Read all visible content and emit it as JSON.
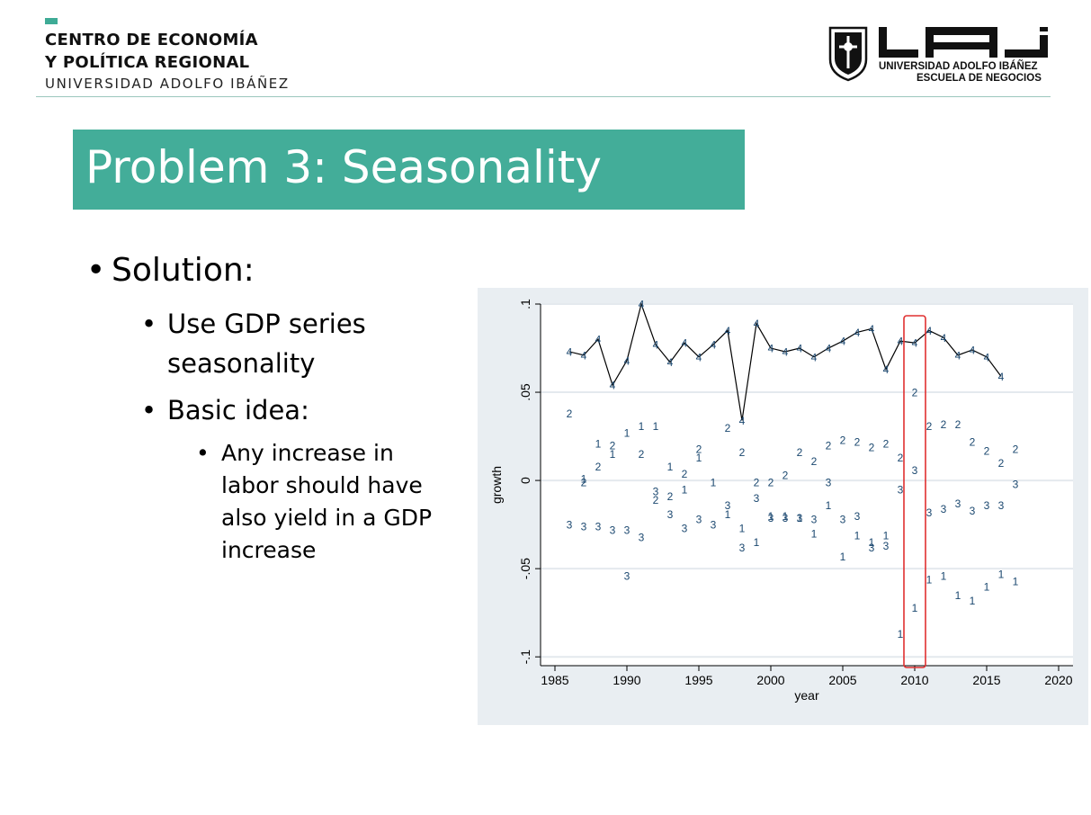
{
  "header": {
    "line1": "CENTRO DE ECONOMÍA",
    "line2": "Y POLÍTICA REGIONAL",
    "line3": "UNIVERSIDAD ADOLFO IBÁÑEZ",
    "logo_text": "UAI",
    "university": "UNIVERSIDAD ADOLFO IBÁÑEZ",
    "school": "ESCUELA DE NEGOCIOS",
    "accent_color": "#43ad99"
  },
  "slide": {
    "title": "Problem 3: Seasonality",
    "bullet1": "Solution:",
    "sub1_line1": "Use GDP series",
    "sub1_line2": "seasonality",
    "sub2": "Basic idea:",
    "subsub_line1": "Any increase in",
    "subsub_line2": "labor should have",
    "subsub_line3": "also yield in a GDP",
    "subsub_line4": "increase"
  },
  "chart_data": {
    "type": "scatter",
    "xlabel": "year",
    "ylabel": "growth",
    "xlim": [
      1984,
      2021
    ],
    "ylim": [
      -0.105,
      0.1
    ],
    "x_ticks": [
      "1985",
      "1990",
      "1995",
      "2000",
      "2005",
      "2010",
      "2015",
      "2020"
    ],
    "y_ticks": [
      "-.1",
      "-.05",
      "0",
      ".05",
      ".1"
    ],
    "grid": true,
    "marker_color": "#1a476f",
    "line_color": "#000000",
    "highlight": {
      "year": 2010,
      "color": "#e03030"
    },
    "series": [
      {
        "name": "1",
        "x": [
          1987,
          1988,
          1989,
          1990,
          1991,
          1992,
          1993,
          1994,
          1995,
          1996,
          1997,
          1998,
          1999,
          2000,
          2001,
          2002,
          2003,
          2004,
          2005,
          2006,
          2007,
          2008,
          2009,
          2010,
          2011,
          2012,
          2013,
          2014,
          2015,
          2016,
          2017
        ],
        "y": [
          0.001,
          0.021,
          0.015,
          0.027,
          0.031,
          0.031,
          0.008,
          -0.005,
          0.013,
          -0.001,
          -0.019,
          -0.027,
          -0.035,
          -0.02,
          -0.02,
          -0.021,
          -0.03,
          -0.014,
          -0.043,
          -0.031,
          -0.035,
          -0.031,
          -0.087,
          -0.072,
          -0.056,
          -0.054,
          -0.065,
          -0.068,
          -0.06,
          -0.053,
          -0.057
        ]
      },
      {
        "name": "2",
        "x": [
          1986,
          1987,
          1988,
          1989,
          1991,
          1992,
          1993,
          1994,
          1995,
          1997,
          1998,
          1999,
          2000,
          2001,
          2002,
          2003,
          2004,
          2005,
          2006,
          2007,
          2008,
          2009,
          2010,
          2011,
          2012,
          2013,
          2014,
          2015,
          2016,
          2017
        ],
        "y": [
          0.038,
          -0.001,
          0.008,
          0.02,
          0.015,
          -0.011,
          -0.009,
          0.004,
          0.018,
          0.03,
          0.016,
          -0.001,
          -0.001,
          0.003,
          0.016,
          0.011,
          0.02,
          0.023,
          0.022,
          0.019,
          0.021,
          0.013,
          0.05,
          0.031,
          0.032,
          0.032,
          0.022,
          0.017,
          0.01,
          0.018
        ]
      },
      {
        "name": "3",
        "x": [
          1986,
          1987,
          1988,
          1989,
          1990,
          1990,
          1991,
          1992,
          1993,
          1994,
          1995,
          1996,
          1997,
          1998,
          1999,
          2000,
          2001,
          2002,
          2003,
          2004,
          2005,
          2006,
          2007,
          2008,
          2009,
          2010,
          2011,
          2012,
          2013,
          2014,
          2015,
          2016,
          2017
        ],
        "y": [
          -0.025,
          -0.026,
          -0.026,
          -0.028,
          -0.028,
          -0.054,
          -0.032,
          -0.006,
          -0.019,
          -0.027,
          -0.022,
          -0.025,
          -0.014,
          -0.038,
          -0.01,
          -0.021,
          -0.021,
          -0.021,
          -0.022,
          -0.001,
          -0.022,
          -0.02,
          -0.038,
          -0.037,
          -0.005,
          0.006,
          -0.018,
          -0.016,
          -0.013,
          -0.017,
          -0.014,
          -0.014,
          -0.002
        ]
      },
      {
        "name": "4",
        "x": [
          1986,
          1987,
          1988,
          1989,
          1990,
          1991,
          1992,
          1993,
          1994,
          1995,
          1996,
          1997,
          1998,
          1999,
          2000,
          2001,
          2002,
          2003,
          2004,
          2005,
          2006,
          2007,
          2008,
          2009,
          2010,
          2011,
          2012,
          2013,
          2014,
          2015,
          2016
        ],
        "y": [
          0.073,
          0.071,
          0.08,
          0.054,
          0.068,
          0.1,
          0.077,
          0.067,
          0.078,
          0.07,
          0.077,
          0.085,
          0.034,
          0.089,
          0.075,
          0.073,
          0.075,
          0.07,
          0.075,
          0.079,
          0.084,
          0.086,
          0.063,
          0.079,
          0.078,
          0.085,
          0.081,
          0.071,
          0.074,
          0.07,
          0.059
        ]
      }
    ]
  }
}
